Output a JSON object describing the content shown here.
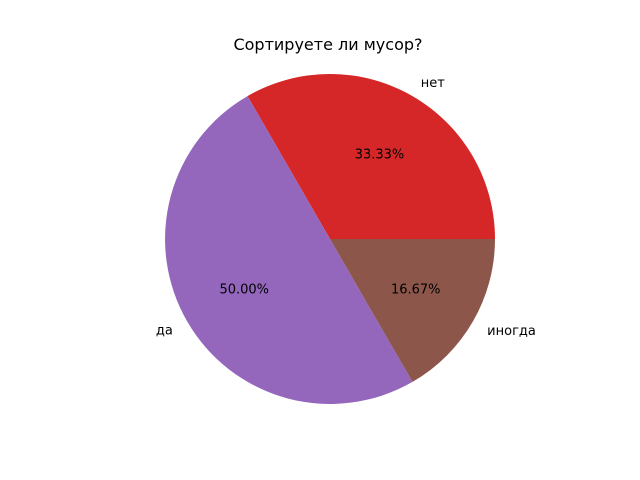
{
  "chart_data": {
    "type": "pie",
    "title": "Сортируете ли мусор?",
    "start_angle_deg": 0,
    "direction": "counterclockwise",
    "slices": [
      {
        "label": "нет",
        "value": 33.33,
        "pct_label": "33.33%",
        "color": "#d62728"
      },
      {
        "label": "да",
        "value": 50.0,
        "pct_label": "50.00%",
        "color": "#9467bd"
      },
      {
        "label": "иногда",
        "value": 16.67,
        "pct_label": "16.67%",
        "color": "#8c564b"
      }
    ]
  }
}
